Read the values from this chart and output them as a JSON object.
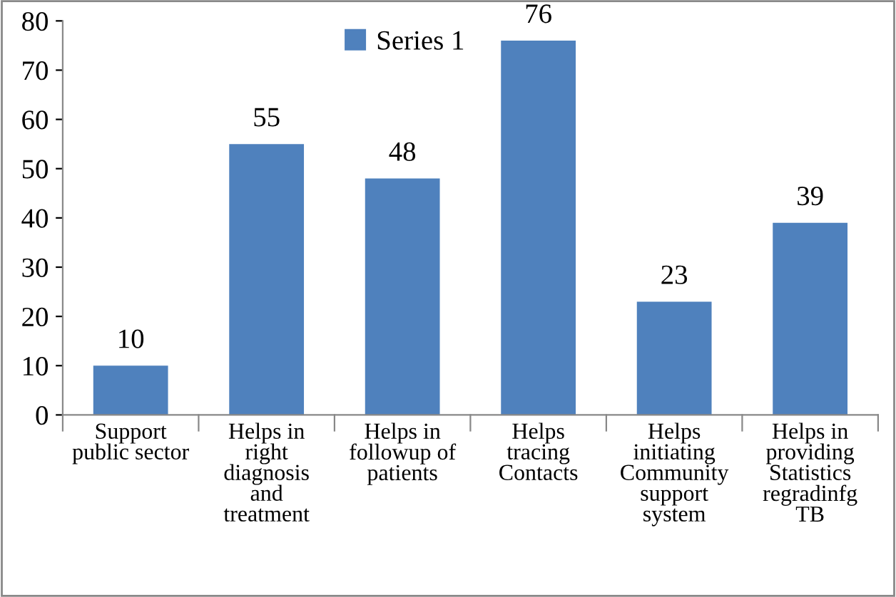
{
  "chart_data": {
    "type": "bar",
    "categories": [
      "Support\npublic sector",
      "Helps in\nright\ndiagnosis\nand\ntreatment",
      "Helps in\nfollowup of\npatients",
      "Helps\ntracing\nContacts",
      "Helps\ninitiating\nCommunity\nsupport\nsystem",
      "Helps in\nproviding\nStatistics\nregradinfg\nTB"
    ],
    "series": [
      {
        "name": "Series 1",
        "color": "#4f81bd",
        "values": [
          10,
          55,
          48,
          76,
          23,
          39
        ]
      }
    ],
    "ylim": [
      0,
      80
    ],
    "yticks": [
      0,
      10,
      20,
      30,
      40,
      50,
      60,
      70,
      80
    ],
    "data_labels": true,
    "legend": "top",
    "grid": false
  }
}
